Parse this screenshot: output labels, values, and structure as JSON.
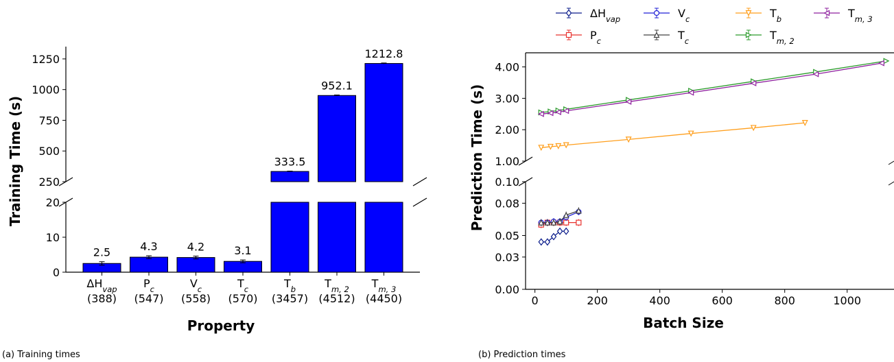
{
  "chart_data": [
    {
      "type": "bar",
      "caption": "(a) Training times",
      "xlabel": "Property",
      "ylabel": "Training Time (s)",
      "broken_axis": true,
      "ylim_upper": [
        250,
        1350
      ],
      "ylim_lower": [
        0,
        20
      ],
      "yticks_upper": [
        "250",
        "500",
        "750",
        "1000",
        "1250"
      ],
      "yticks_lower": [
        "0",
        "10",
        "20"
      ],
      "bar_color": "#0000ff",
      "categories": [
        {
          "name": "ΔH",
          "sub": "vap",
          "count": "(388)"
        },
        {
          "name": "P",
          "sub": "c",
          "count": "(547)"
        },
        {
          "name": "V",
          "sub": "c",
          "count": "(558)"
        },
        {
          "name": "T",
          "sub": "c",
          "count": "(570)"
        },
        {
          "name": "T",
          "sub": "b",
          "count": "(3457)"
        },
        {
          "name": "T",
          "sub": "m, 2",
          "count": "(4512)"
        },
        {
          "name": "T",
          "sub": "m, 3",
          "count": "(4450)"
        }
      ],
      "values": [
        2.5,
        4.3,
        4.2,
        3.1,
        333.5,
        952.1,
        1212.8
      ],
      "errors": [
        0.5,
        0.4,
        0.4,
        0.4,
        3,
        4,
        4
      ],
      "value_labels": [
        "2.5",
        "4.3",
        "4.2",
        "3.1",
        "333.5",
        "952.1",
        "1212.8"
      ]
    },
    {
      "type": "line",
      "caption": "(b) Prediction times",
      "xlabel": "Batch Size",
      "ylabel": "Prediction Time (s)",
      "broken_axis": true,
      "xlim": [
        -30,
        1150
      ],
      "xticks": [
        "0",
        "200",
        "400",
        "600",
        "800",
        "1000"
      ],
      "ylim_upper": [
        1.0,
        4.45
      ],
      "ylim_lower": [
        0.0,
        0.1
      ],
      "yticks_upper": [
        "1.00",
        "2.00",
        "3.00",
        "4.00"
      ],
      "yticks_lower": [
        "0.00",
        "0.03",
        "0.05",
        "0.08",
        "0.10"
      ],
      "legend_position": "top",
      "series": [
        {
          "name": "ΔH",
          "sub": "vap",
          "color": "#0a1b8a",
          "marker": "diamond",
          "x": [
            20,
            40,
            60,
            80,
            100
          ],
          "y": [
            0.044,
            0.044,
            0.049,
            0.054,
            0.054
          ]
        },
        {
          "name": "P",
          "sub": "c",
          "color": "#e8302c",
          "marker": "square",
          "x": [
            20,
            40,
            60,
            80,
            100,
            140
          ],
          "y": [
            0.06,
            0.062,
            0.062,
            0.062,
            0.062,
            0.062
          ]
        },
        {
          "name": "V",
          "sub": "c",
          "color": "#1f1fd6",
          "marker": "circle",
          "x": [
            20,
            40,
            60,
            80,
            100,
            140
          ],
          "y": [
            0.062,
            0.062,
            0.063,
            0.063,
            0.067,
            0.072
          ]
        },
        {
          "name": "T",
          "sub": "c",
          "color": "#404040",
          "marker": "tri-up",
          "x": [
            20,
            40,
            60,
            80,
            100,
            140
          ],
          "y": [
            0.062,
            0.062,
            0.062,
            0.063,
            0.069,
            0.073
          ]
        },
        {
          "name": "T",
          "sub": "b",
          "color": "#ff9e1b",
          "marker": "tri-down",
          "x": [
            20,
            50,
            75,
            100,
            300,
            500,
            700,
            865
          ],
          "y": [
            1.43,
            1.46,
            1.48,
            1.51,
            1.69,
            1.88,
            2.06,
            2.22
          ]
        },
        {
          "name": "T",
          "sub": "m, 2",
          "color": "#2a9a2a",
          "marker": "tri-right",
          "x": [
            20,
            50,
            75,
            100,
            300,
            500,
            700,
            900,
            1125
          ],
          "y": [
            2.55,
            2.58,
            2.61,
            2.65,
            2.95,
            3.24,
            3.54,
            3.84,
            4.19
          ]
        },
        {
          "name": "T",
          "sub": "m, 3",
          "color": "#8e1f9e",
          "marker": "tri-left",
          "x": [
            20,
            50,
            75,
            100,
            300,
            500,
            700,
            900,
            1110
          ],
          "y": [
            2.5,
            2.53,
            2.56,
            2.6,
            2.89,
            3.18,
            3.48,
            3.77,
            4.12
          ]
        }
      ]
    }
  ]
}
